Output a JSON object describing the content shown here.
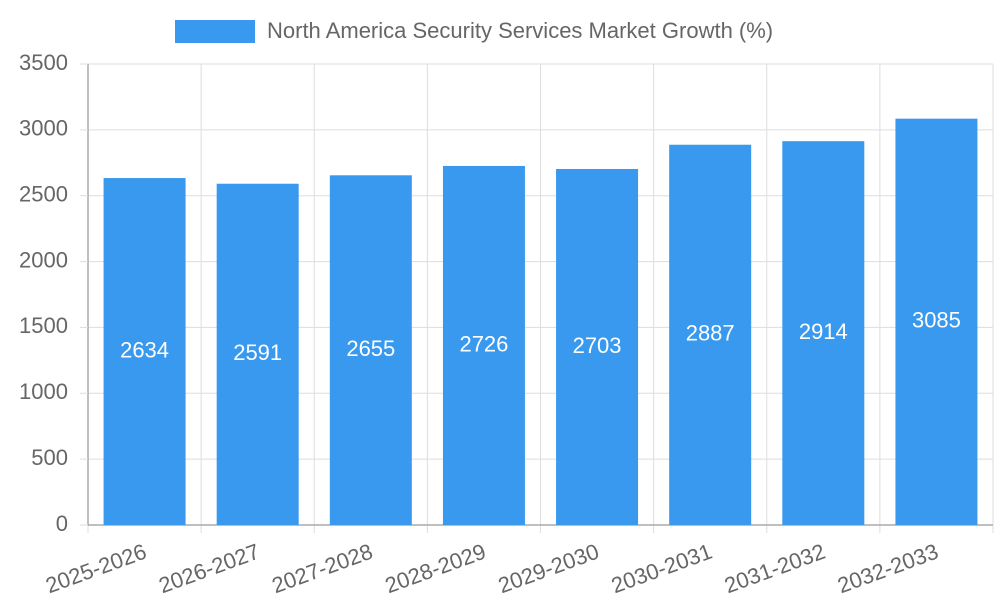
{
  "colors": {
    "bar": "#3899EE",
    "grid": "#DDDDDD",
    "axis": "#AAAAAA",
    "tick_text": "#666666",
    "bar_label": "#FFFFFF",
    "legend_text": "#666666",
    "background": "#FFFFFF"
  },
  "chart_data": {
    "type": "bar",
    "categories": [
      "2025-2026",
      "2026-2027",
      "2027-2028",
      "2028-2029",
      "2029-2030",
      "2030-2031",
      "2031-2032",
      "2032-2033"
    ],
    "series": [
      {
        "name": "North America Security Services Market Growth (%)",
        "values": [
          2634,
          2591,
          2655,
          2726,
          2703,
          2887,
          2914,
          3085
        ]
      }
    ],
    "y_ticks": [
      0,
      500,
      1000,
      1500,
      2000,
      2500,
      3000,
      3500
    ],
    "ylim": [
      0,
      3500
    ],
    "grid": true,
    "legend_position": "top-center",
    "data_labels": "inside-center",
    "x_tick_rotation": "angled"
  }
}
